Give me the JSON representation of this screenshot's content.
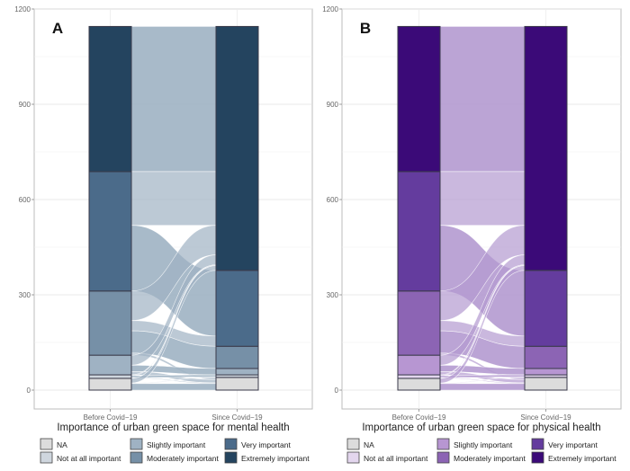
{
  "chart_data": [
    {
      "type": "alluvial",
      "panel_label": "A",
      "xlabel": "Importance of urban green space for mental health",
      "ylabel": "",
      "ylim": [
        0,
        1200
      ],
      "yticks": [
        0,
        300,
        600,
        900,
        1200
      ],
      "categories": [
        "Before Covid−19",
        "Since Covid−19"
      ],
      "levels": [
        "NA",
        "Not at all important",
        "Slightly important",
        "Moderately important",
        "Very important",
        "Extremely important"
      ],
      "colors": [
        "#dcdcdc",
        "#cfd6de",
        "#9fb2c3",
        "#7690a7",
        "#4b6b8a",
        "#24445f"
      ],
      "flow_color": "#9fb2c3",
      "series": [
        {
          "name": "Before Covid−19",
          "values": [
            37,
            11,
            62,
            202,
            376,
            457
          ]
        },
        {
          "name": "Since Covid−19",
          "values": [
            40,
            8,
            20,
            70,
            239,
            768
          ]
        }
      ],
      "grid": true,
      "legend_position": "bottom"
    },
    {
      "type": "alluvial",
      "panel_label": "B",
      "xlabel": "Importance of urban green space for physical health",
      "ylabel": "",
      "ylim": [
        0,
        1200
      ],
      "yticks": [
        0,
        300,
        600,
        900,
        1200
      ],
      "categories": [
        "Before Covid−19",
        "Since Covid−19"
      ],
      "levels": [
        "NA",
        "Not at all important",
        "Slightly important",
        "Moderately important",
        "Very important",
        "Extremely important"
      ],
      "colors": [
        "#dcdcdc",
        "#e3d6ee",
        "#b796d2",
        "#8c64b4",
        "#643c9e",
        "#3b0a78"
      ],
      "flow_color": "#b49ad0",
      "series": [
        {
          "name": "Before Covid−19",
          "values": [
            37,
            11,
            62,
            202,
            376,
            457
          ]
        },
        {
          "name": "Since Covid−19",
          "values": [
            40,
            8,
            20,
            70,
            239,
            768
          ]
        }
      ],
      "grid": true,
      "legend_position": "bottom"
    }
  ]
}
